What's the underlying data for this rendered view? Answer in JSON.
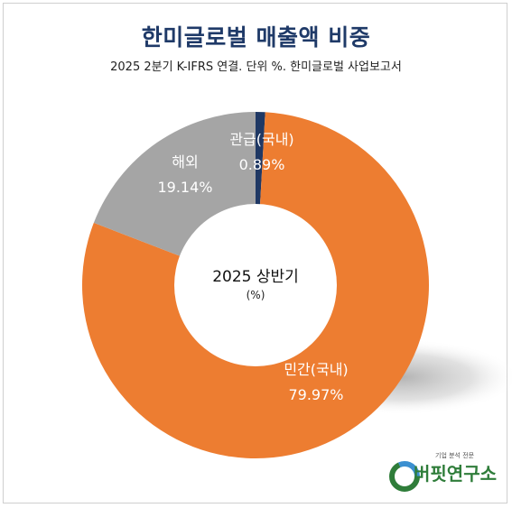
{
  "title": "한미글로벌 매출액 비중",
  "subtitle": "2025 2분기 K-IFRS 연결. 단위 %. 한미글로벌 사업보고서",
  "center": {
    "line1": "2025 상반기",
    "line2": "(%)"
  },
  "logo": {
    "small_text": "기업 분석 전문",
    "name": "버핏연구소"
  },
  "chart_data": {
    "type": "pie",
    "variant": "donut",
    "categories": [
      "관급(국내)",
      "민간(국내)",
      "해외"
    ],
    "values": [
      0.89,
      79.97,
      19.14
    ],
    "value_labels": [
      "0.89%",
      "79.97%",
      "19.14%"
    ],
    "colors": [
      "#1f3864",
      "#ed7d31",
      "#a5a5a5"
    ],
    "title": "한미글로벌 매출액 비중",
    "legend": "none"
  }
}
